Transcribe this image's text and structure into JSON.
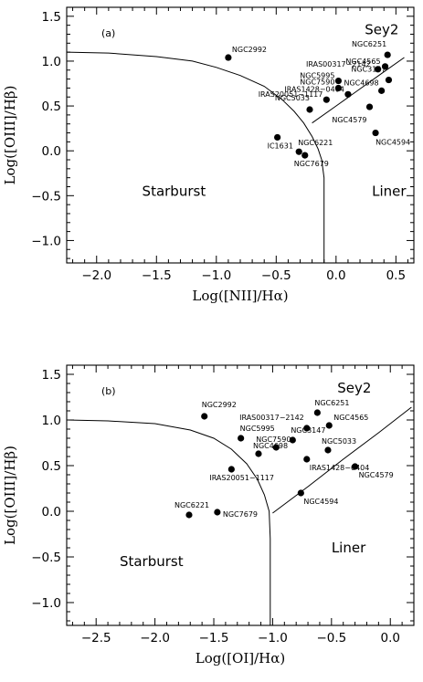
{
  "chart_data": [
    {
      "type": "scatter",
      "panel_label": "(a)",
      "xlabel": "Log([NII]/Hα)",
      "ylabel": "Log([OIII]/Hβ)",
      "xlim": [
        -2.25,
        0.65
      ],
      "ylim": [
        -1.25,
        1.6
      ],
      "xticks": [
        -2.0,
        -1.5,
        -1.0,
        -0.5,
        0.0,
        0.5
      ],
      "xtick_labels": [
        "−2.0",
        "−1.5",
        "−1.0",
        "−0.5",
        "0.0",
        "0.5"
      ],
      "yticks": [
        -1.0,
        -0.5,
        0.0,
        0.5,
        1.0,
        1.5
      ],
      "ytick_labels": [
        "−1.0",
        "−0.5",
        "0.0",
        "0.5",
        "1.0",
        "1.5"
      ],
      "regions": [
        {
          "text": "Sey2",
          "x": 0.24,
          "y": 1.3
        },
        {
          "text": "Starburst",
          "x": -1.62,
          "y": -0.5
        },
        {
          "text": "Liner",
          "x": 0.3,
          "y": -0.5
        }
      ],
      "curves": [
        {
          "name": "starburst-boundary",
          "x": [
            -2.25,
            -1.9,
            -1.5,
            -1.2,
            -1.0,
            -0.8,
            -0.6,
            -0.45,
            -0.35,
            -0.27,
            -0.2,
            -0.15,
            -0.12,
            -0.1,
            -0.1
          ],
          "y": [
            1.1,
            1.09,
            1.05,
            1.0,
            0.93,
            0.84,
            0.72,
            0.57,
            0.44,
            0.31,
            0.16,
            0.02,
            -0.1,
            -0.3,
            -1.25
          ]
        },
        {
          "name": "seyfert-liner-division",
          "x": [
            -0.2,
            0.0,
            0.2,
            0.4,
            0.57
          ],
          "y": [
            0.31,
            0.5,
            0.69,
            0.88,
            1.04
          ]
        }
      ],
      "points": [
        {
          "label": "NGC2992",
          "x": -0.9,
          "y": 1.04
        },
        {
          "label": "NGC6251",
          "x": 0.43,
          "y": 1.07
        },
        {
          "label": "IRAS00317−2142",
          "x": 0.35,
          "y": 0.91
        },
        {
          "label": "NGC4565",
          "x": 0.41,
          "y": 0.94
        },
        {
          "label": "NGC5995",
          "x": 0.02,
          "y": 0.78
        },
        {
          "label": "NGC3147",
          "x": 0.44,
          "y": 0.79
        },
        {
          "label": "NGC7590",
          "x": 0.02,
          "y": 0.7
        },
        {
          "label": "NGC4698",
          "x": 0.38,
          "y": 0.67
        },
        {
          "label": "IRAS1428−0404",
          "x": 0.1,
          "y": 0.63
        },
        {
          "label": "IRAS20051−1117",
          "x": -0.08,
          "y": 0.57
        },
        {
          "label": "NGC5033",
          "x": -0.22,
          "y": 0.46
        },
        {
          "label": "NGC4579",
          "x": 0.28,
          "y": 0.49
        },
        {
          "label": "NGC4594",
          "x": 0.33,
          "y": 0.2
        },
        {
          "label": "IC1631",
          "x": -0.49,
          "y": 0.15
        },
        {
          "label": "NGC6221",
          "x": -0.31,
          "y": -0.01
        },
        {
          "label": "NGC7679",
          "x": -0.26,
          "y": -0.05
        }
      ]
    },
    {
      "type": "scatter",
      "panel_label": "(b)",
      "xlabel": "Log([OI]/Hα)",
      "ylabel": "Log([OIII]/Hβ)",
      "xlim": [
        -2.75,
        0.2
      ],
      "ylim": [
        -1.25,
        1.6
      ],
      "xticks": [
        -2.5,
        -2.0,
        -1.5,
        -1.0,
        -0.5,
        0.0
      ],
      "xtick_labels": [
        "−2.5",
        "−2.0",
        "−1.5",
        "−1.0",
        "−0.5",
        "0.0"
      ],
      "yticks": [
        -1.0,
        -0.5,
        0.0,
        0.5,
        1.0,
        1.5
      ],
      "ytick_labels": [
        "−1.0",
        "−0.5",
        "0.0",
        "0.5",
        "1.0",
        "1.5"
      ],
      "regions": [
        {
          "text": "Sey2",
          "x": -0.45,
          "y": 1.3
        },
        {
          "text": "Starburst",
          "x": -2.3,
          "y": -0.6
        },
        {
          "text": "Liner",
          "x": -0.5,
          "y": -0.45
        }
      ],
      "curves": [
        {
          "name": "starburst-boundary",
          "x": [
            -2.75,
            -2.4,
            -2.0,
            -1.7,
            -1.5,
            -1.35,
            -1.22,
            -1.13,
            -1.07,
            -1.03,
            -1.02,
            -1.02
          ],
          "y": [
            1.0,
            0.99,
            0.96,
            0.89,
            0.8,
            0.68,
            0.52,
            0.35,
            0.18,
            0.0,
            -0.3,
            -1.25
          ]
        },
        {
          "name": "seyfert-liner-division",
          "x": [
            -1.0,
            -0.7,
            -0.4,
            -0.1,
            0.18
          ],
          "y": [
            -0.02,
            0.27,
            0.57,
            0.86,
            1.14
          ]
        }
      ],
      "points": [
        {
          "label": "NGC2992",
          "x": -1.58,
          "y": 1.04
        },
        {
          "label": "NGC6251",
          "x": -0.62,
          "y": 1.08
        },
        {
          "label": "IRAS00317−2142",
          "x": -0.71,
          "y": 0.91
        },
        {
          "label": "NGC4565",
          "x": -0.52,
          "y": 0.94
        },
        {
          "label": "NGC5995",
          "x": -1.27,
          "y": 0.8
        },
        {
          "label": "NGC3147",
          "x": -0.83,
          "y": 0.78
        },
        {
          "label": "NGC7590",
          "x": -0.97,
          "y": 0.7
        },
        {
          "label": "NGC4698",
          "x": -1.12,
          "y": 0.63
        },
        {
          "label": "IRAS20051−1117",
          "x": -1.35,
          "y": 0.46
        },
        {
          "label": "NGC5033",
          "x": -0.53,
          "y": 0.67
        },
        {
          "label": "IRAS1428−0404",
          "x": -0.71,
          "y": 0.57
        },
        {
          "label": "NGC4579",
          "x": -0.3,
          "y": 0.49
        },
        {
          "label": "NGC4594",
          "x": -0.76,
          "y": 0.2
        },
        {
          "label": "NGC6221",
          "x": -1.71,
          "y": -0.04
        },
        {
          "label": "NGC7679",
          "x": -1.47,
          "y": -0.01
        }
      ]
    }
  ]
}
